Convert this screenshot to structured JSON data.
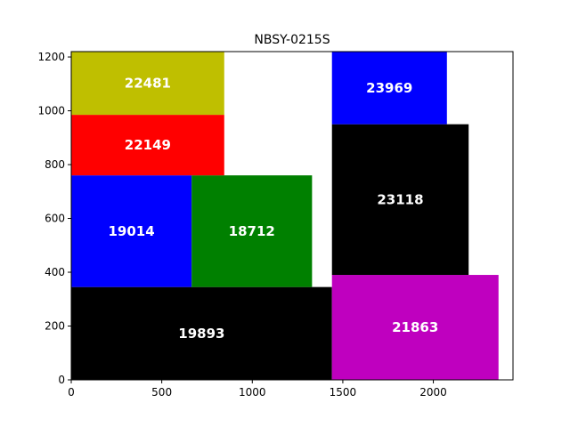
{
  "chart_data": {
    "type": "rect-packing",
    "title": "NBSY-0215S",
    "xlabel": "",
    "ylabel": "",
    "xlim": [
      0,
      2440
    ],
    "ylim": [
      0,
      1220
    ],
    "xticks": [
      0,
      500,
      1000,
      1500,
      2000
    ],
    "yticks": [
      0,
      200,
      400,
      600,
      800,
      1000,
      1200
    ],
    "grid": false,
    "rects": [
      {
        "label": "19893",
        "x": 0,
        "y": 0,
        "w": 1440,
        "h": 345,
        "color": "#000000"
      },
      {
        "label": "19014",
        "x": 0,
        "y": 345,
        "w": 665,
        "h": 415,
        "color": "#0000ff"
      },
      {
        "label": "18712",
        "x": 665,
        "y": 345,
        "w": 665,
        "h": 415,
        "color": "#008000"
      },
      {
        "label": "22149",
        "x": 0,
        "y": 760,
        "w": 845,
        "h": 225,
        "color": "#ff0000"
      },
      {
        "label": "22481",
        "x": 0,
        "y": 985,
        "w": 845,
        "h": 235,
        "color": "#bfbf00"
      },
      {
        "label": "21863",
        "x": 1440,
        "y": 0,
        "w": 920,
        "h": 390,
        "color": "#bf00bf"
      },
      {
        "label": "23118",
        "x": 1440,
        "y": 390,
        "w": 755,
        "h": 560,
        "color": "#000000"
      },
      {
        "label": "23969",
        "x": 1440,
        "y": 950,
        "w": 635,
        "h": 270,
        "color": "#0000ff"
      }
    ]
  }
}
